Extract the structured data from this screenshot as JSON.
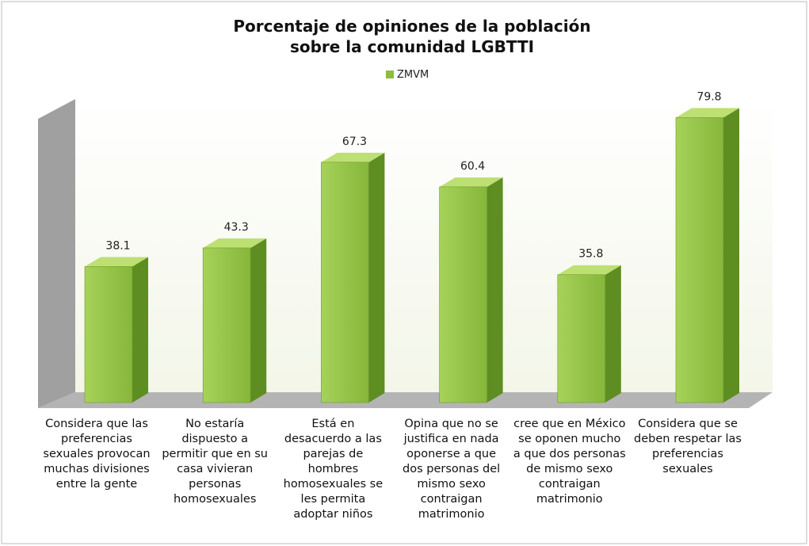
{
  "chart_data": {
    "type": "bar3d",
    "title": "Porcentaje de opiniones de la población sobre la comunidad LGBTTI",
    "categories": [
      "Considera que las preferencias sexuales provocan muchas divisiones entre la gente",
      "No estaría dispuesto a permitir que en su casa vivieran personas homosexuales",
      "Está en desacuerdo a las parejas de hombres homosexuales se les permita adoptar niños",
      "Opina que no se justifica en nada oponerse a que dos personas del mismo sexo contraigan matrimonio",
      "cree que en México se oponen mucho a que dos personas de mismo sexo contraigan matrimonio",
      "Considera que se deben respetar las preferencias sexuales"
    ],
    "series": [
      {
        "name": "ZMVM",
        "color": "#8dbd3c",
        "values": [
          38.1,
          43.3,
          67.3,
          60.4,
          35.8,
          79.8
        ]
      }
    ],
    "ylim": [
      0,
      85
    ],
    "legend": "top"
  }
}
